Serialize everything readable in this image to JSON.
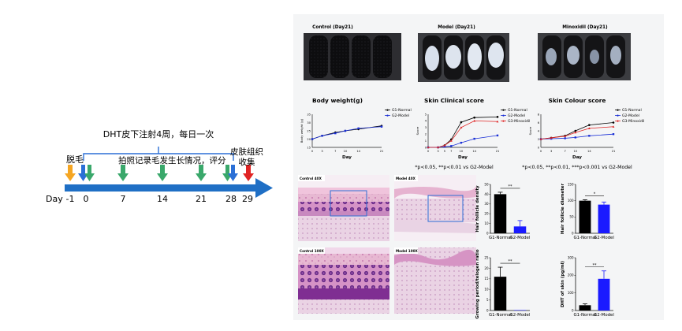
{
  "timeline": {
    "day_label": "Day",
    "days": [
      "-1",
      "0",
      "7",
      "14",
      "21",
      "28",
      "29"
    ],
    "hair_removal": "脱毛",
    "injection": "DHT皮下注射4周，每日一次",
    "photo_record": "拍照记录毛发生长情况，评分",
    "tissue_line1": "皮肤组织",
    "tissue_line2": "收集",
    "colors": {
      "arrow": "#1f6fc5",
      "orange": "#f5a623",
      "blue": "#2b6fd6",
      "green": "#3aa86b",
      "red": "#e02424"
    }
  },
  "photos": [
    {
      "title": "Control (Day21)"
    },
    {
      "title": "Model (Day21)"
    },
    {
      "title": "Minoxidil (Day21)"
    }
  ],
  "line_charts": [
    {
      "title": "Body weight(g)",
      "ylabel": "Body weight (g)",
      "xlabel": "Day",
      "xticks": [
        "0",
        "3",
        "7",
        "10",
        "14",
        "21"
      ],
      "yticks": [
        "15",
        "20",
        "25",
        "30",
        "35"
      ],
      "legend": [
        "G1-Normal",
        "G2-Model"
      ],
      "footnote": ""
    },
    {
      "title": "Skin Clinical score",
      "ylabel": "Score",
      "xlabel": "Day",
      "xticks": [
        "0",
        "3",
        "5",
        "7",
        "10",
        "14",
        "21"
      ],
      "yticks": [
        "0",
        "1",
        "2",
        "3",
        "4",
        "5"
      ],
      "legend": [
        "G1-Normal",
        "G2-Model",
        "G3-Minoxidil"
      ],
      "footnote": "*p<0.05, **p<0.01 vs G2-Model"
    },
    {
      "title": "Skin Colour score",
      "ylabel": "Score",
      "xlabel": "Day",
      "xticks": [
        "0",
        "3",
        "7",
        "10",
        "14",
        "21"
      ],
      "yticks": [
        "0",
        "2",
        "4",
        "6",
        "8"
      ],
      "legend": [
        "G1-Normal",
        "G2-Model",
        "G3-Minoxidil"
      ],
      "footnote": "*p<0.05, **p<0.01, ***p<0.001 vs G2-Model"
    }
  ],
  "histology": [
    {
      "label": "Control 40X"
    },
    {
      "label": "Model 40X"
    },
    {
      "label": "Control 100X"
    },
    {
      "label": "Model 100X"
    }
  ],
  "chart_data": [
    {
      "type": "line",
      "title": "Body weight(g)",
      "xlabel": "Day",
      "ylabel": "Body weight (g)",
      "x": [
        0,
        3,
        7,
        10,
        14,
        21
      ],
      "ylim": [
        15,
        35
      ],
      "series": [
        {
          "name": "G1-Normal",
          "values": [
            20,
            22,
            24,
            25,
            26,
            28
          ]
        },
        {
          "name": "G2-Model",
          "values": [
            20,
            22,
            23.5,
            25,
            26.5,
            27.5
          ]
        }
      ]
    },
    {
      "type": "line",
      "title": "Skin Clinical score",
      "xlabel": "Day",
      "ylabel": "Score",
      "x": [
        0,
        3,
        5,
        7,
        10,
        14,
        21
      ],
      "ylim": [
        0,
        5
      ],
      "series": [
        {
          "name": "G1-Normal",
          "values": [
            0,
            0,
            0.3,
            1.2,
            3.8,
            4.5,
            4.6
          ]
        },
        {
          "name": "G2-Model",
          "values": [
            0,
            0,
            0.1,
            0.2,
            0.7,
            1.3,
            1.8
          ]
        },
        {
          "name": "G3-Minoxidil",
          "values": [
            0,
            0,
            0.3,
            1.0,
            3.0,
            4.0,
            3.9
          ]
        }
      ]
    },
    {
      "type": "line",
      "title": "Skin Colour score",
      "xlabel": "Day",
      "ylabel": "Score",
      "x": [
        0,
        3,
        7,
        10,
        14,
        21
      ],
      "ylim": [
        0,
        8
      ],
      "series": [
        {
          "name": "G1-Normal",
          "values": [
            2.0,
            2.3,
            2.8,
            4.0,
            5.4,
            6.0
          ]
        },
        {
          "name": "G2-Model",
          "values": [
            2.0,
            2.1,
            2.2,
            2.4,
            2.8,
            3.2
          ]
        },
        {
          "name": "G3-Minoxidil",
          "values": [
            2.0,
            2.3,
            2.7,
            3.6,
            4.6,
            5.0
          ]
        }
      ]
    },
    {
      "type": "bar",
      "ylabel": "Hair follicle density",
      "categories": [
        "G1-Normal",
        "G2-Model"
      ],
      "values": [
        40,
        7
      ],
      "errors": [
        2,
        6
      ],
      "ylim": [
        0,
        50
      ],
      "yticks": [
        "0",
        "10",
        "20",
        "30",
        "40",
        "50"
      ],
      "significance": "**",
      "colors": [
        "#000000",
        "#1a1aff"
      ]
    },
    {
      "type": "bar",
      "ylabel": "Hair follicle diameter",
      "categories": [
        "G1-Normal",
        "G2-Model"
      ],
      "values": [
        100,
        88
      ],
      "errors": [
        3,
        8
      ],
      "ylim": [
        0,
        150
      ],
      "yticks": [
        "0",
        "50",
        "100",
        "150"
      ],
      "significance": "*",
      "colors": [
        "#000000",
        "#1a1aff"
      ]
    },
    {
      "type": "bar",
      "ylabel": "Growing period/telogen ratio",
      "categories": [
        "G1-Normal",
        "G2-Model"
      ],
      "values": [
        16,
        0.2
      ],
      "errors": [
        4.5,
        0
      ],
      "ylim": [
        0,
        25
      ],
      "yticks": [
        "0",
        "5",
        "10",
        "15",
        "20",
        "25"
      ],
      "significance": "**",
      "colors": [
        "#000000",
        "#1a1aff"
      ]
    },
    {
      "type": "bar",
      "ylabel": "DHT of skin (pg/ml)",
      "categories": [
        "G1-Normal",
        "G2-Model"
      ],
      "values": [
        30,
        180
      ],
      "errors": [
        8,
        45
      ],
      "ylim": [
        0,
        300
      ],
      "yticks": [
        "0",
        "100",
        "200",
        "300"
      ],
      "significance": "**",
      "colors": [
        "#000000",
        "#1a1aff"
      ]
    }
  ]
}
